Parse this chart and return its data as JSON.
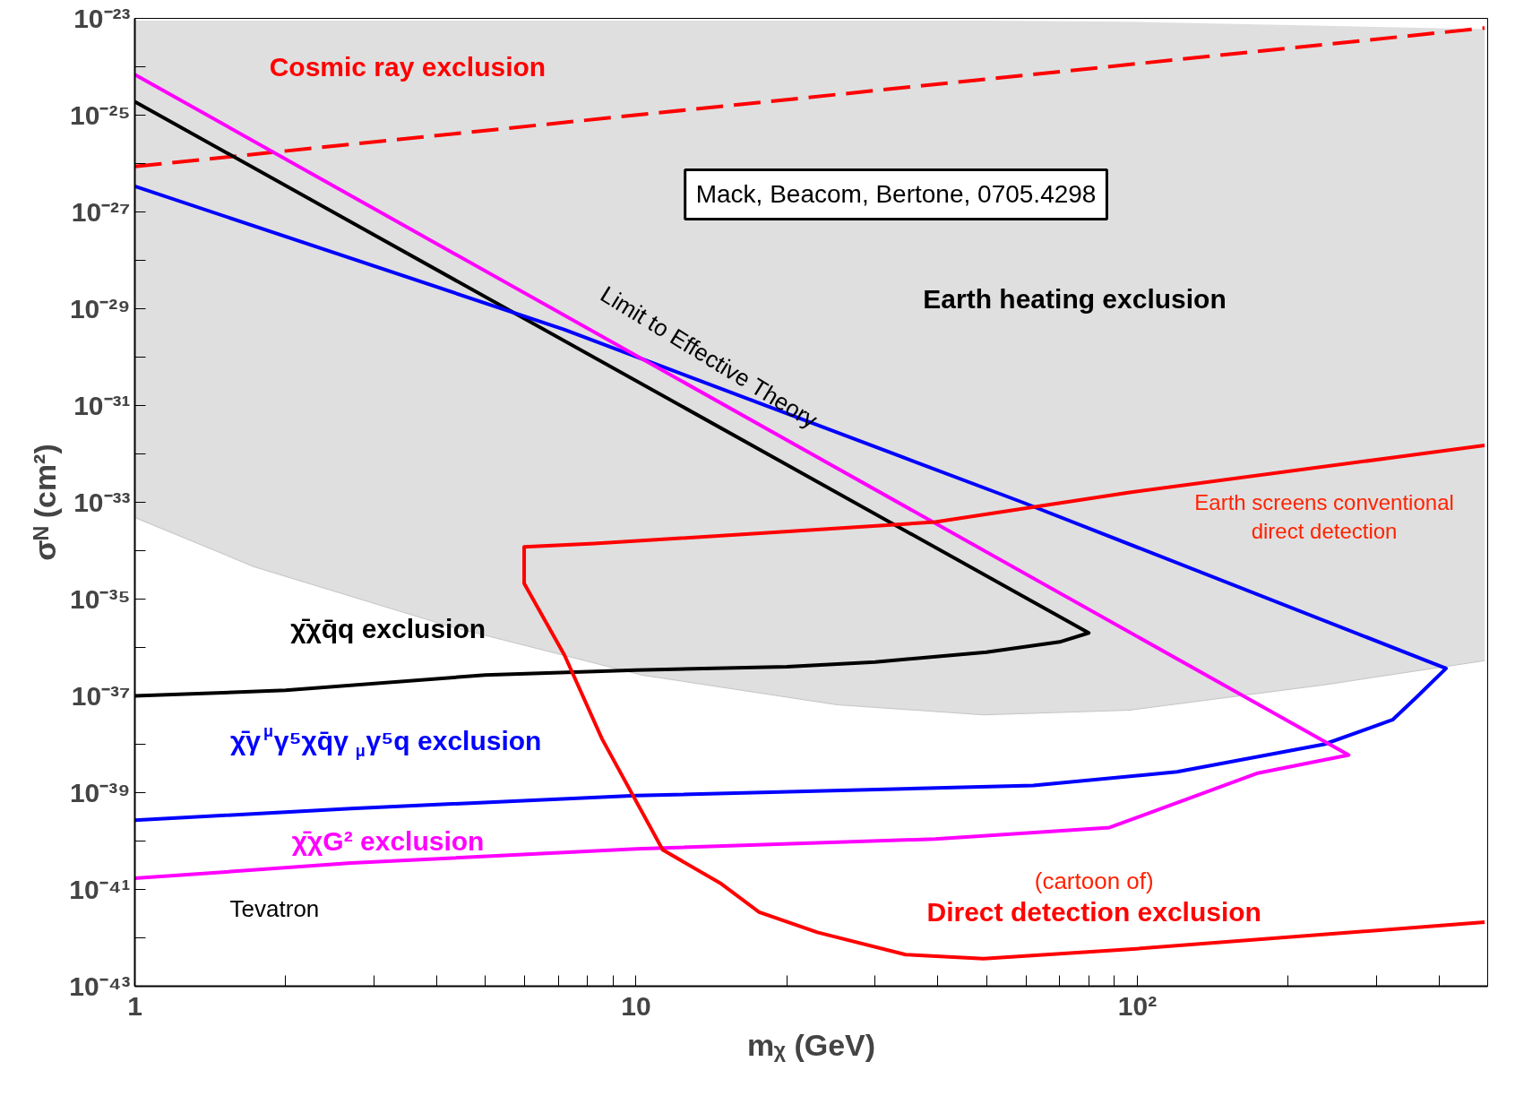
{
  "chart_data": {
    "type": "line",
    "xlabel": "mᵪ (GeV)",
    "ylabel": "σᴺ (cm²)",
    "log": "xy",
    "grid": false,
    "xlim": [
      1,
      500
    ],
    "ylim": [
      1e-43,
      1e-23
    ],
    "xticks": [
      1,
      {
        "value": 2,
        "label": null
      },
      {
        "value": 3,
        "label": null
      },
      {
        "value": 4,
        "label": null
      },
      {
        "value": 5,
        "label": null
      },
      {
        "value": 6,
        "label": null
      },
      {
        "value": 7,
        "label": null
      },
      {
        "value": 8,
        "label": null
      },
      {
        "value": 9,
        "label": null
      },
      10,
      {
        "value": 20,
        "label": null
      },
      {
        "value": 30,
        "label": null
      },
      {
        "value": 40,
        "label": null
      },
      {
        "value": 50,
        "label": null
      },
      {
        "value": 60,
        "label": null
      },
      {
        "value": 70,
        "label": null
      },
      {
        "value": 80,
        "label": null
      },
      {
        "value": 90,
        "label": null
      },
      {
        "value": 100,
        "label": "10²"
      },
      {
        "value": 200,
        "label": null
      },
      {
        "value": 300,
        "label": null
      },
      {
        "value": 400,
        "label": null
      }
    ],
    "yticks": [
      {
        "value": 1e-43,
        "label": "10⁻⁴³"
      },
      {
        "value": 1e-42,
        "label": null
      },
      {
        "value": 1e-41,
        "label": "10⁻⁴¹"
      },
      {
        "value": 1e-40,
        "label": null
      },
      {
        "value": 1e-39,
        "label": "10⁻³⁹"
      },
      {
        "value": 1e-38,
        "label": null
      },
      {
        "value": 1e-37,
        "label": "10⁻³⁷"
      },
      {
        "value": 1e-36,
        "label": null
      },
      {
        "value": 1e-35,
        "label": "10⁻³⁵"
      },
      {
        "value": 1e-34,
        "label": null
      },
      {
        "value": 1e-33,
        "label": "10⁻³³"
      },
      {
        "value": 1e-32,
        "label": null
      },
      {
        "value": 1e-31,
        "label": "10⁻³¹"
      },
      {
        "value": 1e-30,
        "label": null
      },
      {
        "value": 1e-29,
        "label": "10⁻²⁹"
      },
      {
        "value": 1e-28,
        "label": null
      },
      {
        "value": 1e-27,
        "label": "10⁻²⁷"
      },
      {
        "value": 1e-26,
        "label": null
      },
      {
        "value": 1e-25,
        "label": "10⁻²⁵"
      },
      {
        "value": 1e-24,
        "label": null
      },
      {
        "value": 1e-23,
        "label": "10⁻²³"
      }
    ],
    "series": [
      {
        "color": "#c4c4c4",
        "x": [
          1,
          1.73,
          4.22,
          10.3,
          25.2,
          49.3,
          96.5,
          236,
          493
        ],
        "values": [
          4.9e-34,
          4.7e-35,
          2.8e-36,
          2.7e-37,
          6.6e-38,
          4.1e-38,
          5.1e-38,
          1.7e-37,
          5.4e-37
        ],
        "lower": [
          4.9e-34,
          4.7e-35,
          2.8e-36,
          2.7e-37,
          6.6e-38,
          4.1e-38,
          5.1e-38,
          1.7e-37,
          5.4e-37
        ],
        "upper": [
          9e-24,
          9e-24,
          9e-24,
          9e-24,
          9e-24,
          9e-24,
          8.5e-24,
          7e-24,
          6e-24
        ]
      },
      {
        "color": "#ff0000",
        "line_style": "dashed",
        "x": [
          1,
          493
        ],
        "values": [
          8.7e-27,
          6.3e-24
        ]
      },
      {
        "color": "#000000",
        "x": [
          1,
          80,
          70,
          50,
          30,
          20,
          10,
          5,
          2,
          1
        ],
        "values": [
          1.9e-25,
          2e-36,
          1.3e-36,
          8e-37,
          5e-37,
          4e-37,
          3.4e-37,
          2.7e-37,
          1.3e-37,
          1e-37
        ]
      },
      {
        "color": "#0000ff",
        "x": [
          1,
          7.2,
          59,
          413,
          361,
          323,
          236,
          120,
          62,
          10,
          2.7,
          1
        ],
        "values": [
          3.4e-27,
          3.7e-30,
          1e-33,
          3.7e-37,
          9.5e-38,
          3.2e-38,
          1e-38,
          2.7e-39,
          1.4e-39,
          8.7e-40,
          4.7e-40,
          2.7e-40
        ]
      },
      {
        "color": "#ff00ff",
        "x": [
          1,
          264,
          173,
          88,
          39.5,
          10,
          2.7,
          1
        ],
        "values": [
          6.9e-25,
          6e-39,
          2.5e-39,
          1.9e-40,
          1.1e-40,
          6.9e-41,
          3.5e-41,
          1.7e-41
        ]
      },
      {
        "color": "#ff0000",
        "x": [
          493,
          96.5,
          39.5,
          8.26,
          5.98,
          5.98,
          7.2,
          8.55,
          11.3,
          14.8,
          17.6,
          23,
          34.5,
          49.3,
          96.5,
          493
        ],
        "values": [
          1.5e-32,
          1.6e-33,
          3.9e-34,
          1.4e-34,
          1.2e-34,
          2.1e-35,
          6.9e-37,
          1.3e-38,
          6.6e-41,
          1.3e-41,
          3.4e-42,
          1.3e-42,
          4.5e-43,
          3.7e-43,
          5.8e-43,
          2.1e-42
        ]
      }
    ],
    "annotations": [
      "Cosmic ray exclusion",
      "Mack, Beacom, Bertone, 0705.4298",
      "Earth heating exclusion",
      "Limit to Effective Theory",
      "Earth screens conventional\ndirect detection",
      "χ̄χq̄q exclusion",
      "χ̄γ$^{μ}$γ⁵χq̄γ$_{μ}$γ⁵q exclusion",
      "χ̄χG² exclusion",
      "Tevatron",
      "(cartoon of)",
      "Direct detection exclusion"
    ]
  }
}
